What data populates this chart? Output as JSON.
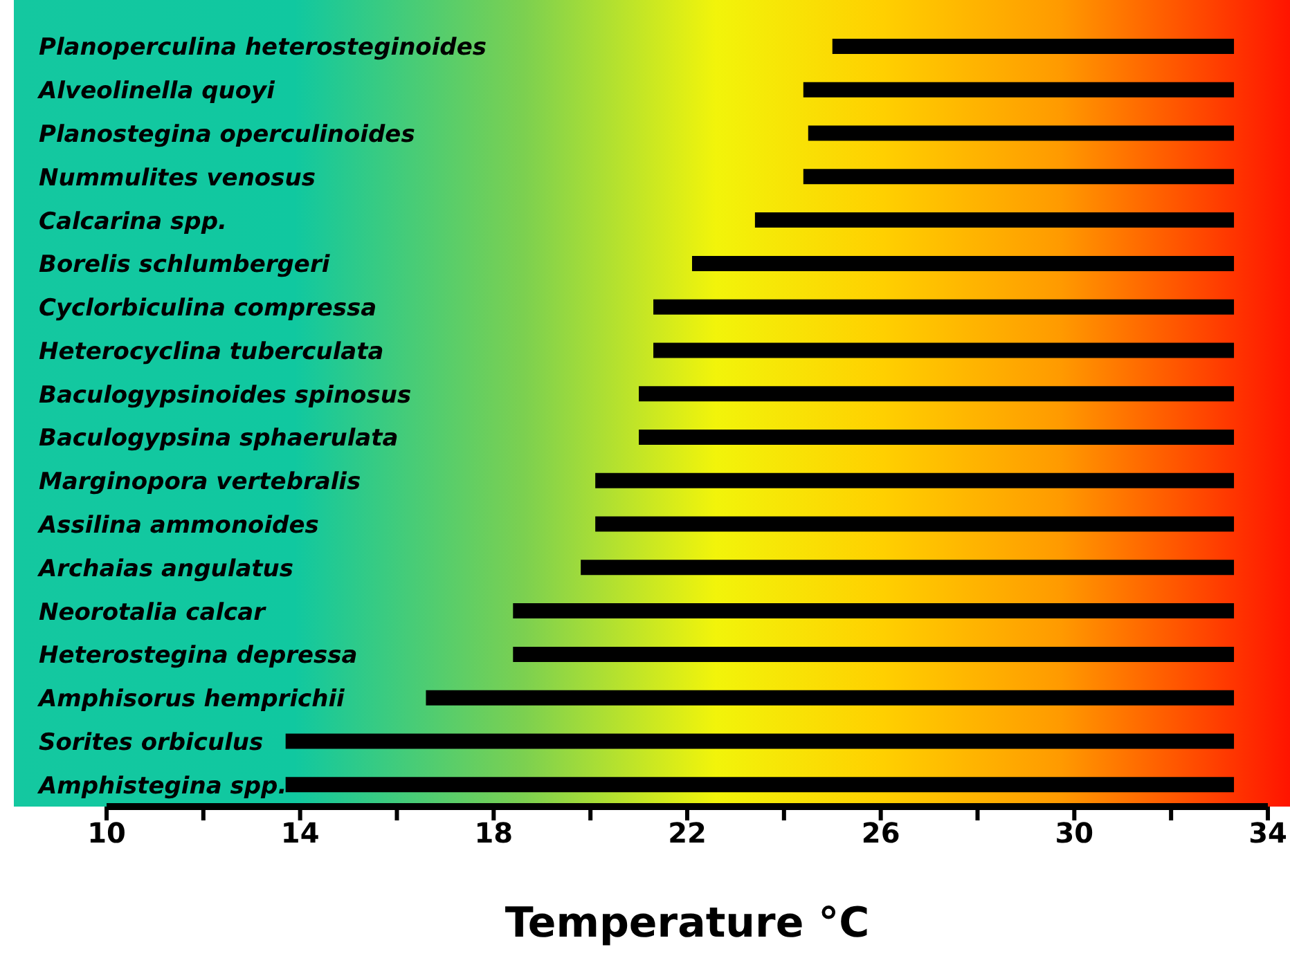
{
  "chart_data": {
    "type": "bar",
    "orientation": "horizontal",
    "xlabel": "Temperature °C",
    "categories": [
      "Planoperculina heterosteginoides",
      "Alveolinella quoyi",
      "Planostegina operculinoides",
      "Nummulites venosus",
      "Calcarina spp.",
      "Borelis schlumbergeri",
      "Cyclorbiculina compressa",
      "Heterocyclina tuberculata",
      "Baculogypsinoides spinosus",
      "Baculogypsina sphaerulata",
      "Marginopora vertebralis",
      "Assilina ammonoides",
      "Archaias angulatus",
      "Neorotalia calcar",
      "Heterostegina depressa",
      "Amphisorus hemprichii",
      "Sorites orbiculus",
      "Amphistegina spp."
    ],
    "base": [
      25.0,
      24.4,
      24.5,
      24.4,
      23.4,
      22.1,
      21.3,
      21.3,
      21.0,
      21.0,
      20.1,
      20.1,
      19.8,
      18.4,
      18.4,
      16.6,
      13.7,
      13.7
    ],
    "values": [
      8.3,
      8.9,
      8.8,
      8.9,
      9.9,
      11.2,
      12.0,
      12.0,
      12.3,
      12.3,
      13.2,
      13.2,
      13.5,
      14.9,
      14.9,
      16.7,
      19.6,
      19.6
    ],
    "color": "#000000",
    "xlim": [
      10,
      34
    ],
    "xticks": [
      10,
      {
        "value": 12,
        "label": null
      },
      14,
      {
        "value": 16,
        "label": null
      },
      18,
      {
        "value": 20,
        "label": null
      },
      22,
      {
        "value": 24,
        "label": null
      },
      26,
      {
        "value": 28,
        "label": null
      },
      30,
      {
        "value": 32,
        "label": null
      },
      34
    ],
    "grid": false,
    "legend": false
  }
}
